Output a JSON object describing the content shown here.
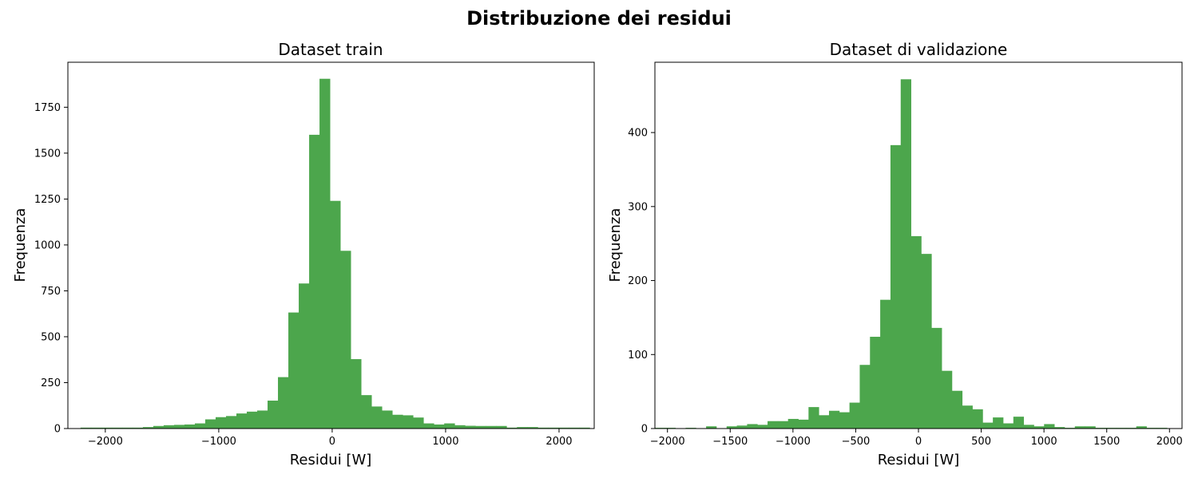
{
  "figure": {
    "suptitle": "Distribuzione dei residui",
    "bar_color": "#4ca64c"
  },
  "chart_data": [
    {
      "type": "bar",
      "title": "Dataset train",
      "xlabel": "Residui [W]",
      "ylabel": "Frequenza",
      "xlim": [
        -2330,
        2310
      ],
      "ylim": [
        0,
        1995
      ],
      "xticks": [
        -2000,
        -1000,
        0,
        1000,
        2000
      ],
      "xtick_labels": [
        "−2000",
        "−1000",
        "0",
        "1000",
        "2000"
      ],
      "yticks": [
        0,
        250,
        500,
        750,
        1000,
        1250,
        1500,
        1750
      ],
      "ytick_labels": [
        "0",
        "250",
        "500",
        "750",
        "1000",
        "1250",
        "1500",
        "1750"
      ],
      "bin_start": -2310,
      "bin_width": 91.6,
      "values": [
        2,
        5,
        5,
        5,
        5,
        5,
        5,
        8,
        14,
        18,
        20,
        22,
        28,
        50,
        62,
        68,
        82,
        92,
        98,
        152,
        280,
        632,
        790,
        1600,
        1905,
        1240,
        968,
        378,
        182,
        120,
        98,
        75,
        72,
        60,
        28,
        22,
        28,
        18,
        15,
        14,
        14,
        14,
        5,
        8,
        8,
        5,
        5,
        5,
        5,
        5
      ]
    },
    {
      "type": "bar",
      "title": "Dataset di validazione",
      "xlabel": "Residui [W]",
      "ylabel": "Frequenza",
      "xlim": [
        -2100,
        2100
      ],
      "ylim": [
        0,
        495
      ],
      "xticks": [
        -2000,
        -1500,
        -1000,
        -500,
        0,
        500,
        1000,
        1500,
        2000
      ],
      "xtick_labels": [
        "−2000",
        "−1500",
        "−1000",
        "−500",
        "0",
        "500",
        "1000",
        "1500",
        "2000"
      ],
      "yticks": [
        0,
        100,
        200,
        300,
        400
      ],
      "ytick_labels": [
        "0",
        "100",
        "200",
        "300",
        "400"
      ],
      "bin_start": -2100,
      "bin_width": 81.6,
      "values": [
        1,
        1,
        0,
        1,
        0,
        3,
        0,
        3,
        4,
        6,
        5,
        10,
        10,
        13,
        12,
        29,
        18,
        24,
        22,
        35,
        86,
        124,
        174,
        383,
        472,
        260,
        236,
        136,
        78,
        51,
        31,
        26,
        8,
        15,
        7,
        16,
        5,
        3,
        6,
        2,
        1,
        3,
        3,
        1,
        1,
        1,
        1,
        3,
        1,
        1
      ]
    }
  ]
}
